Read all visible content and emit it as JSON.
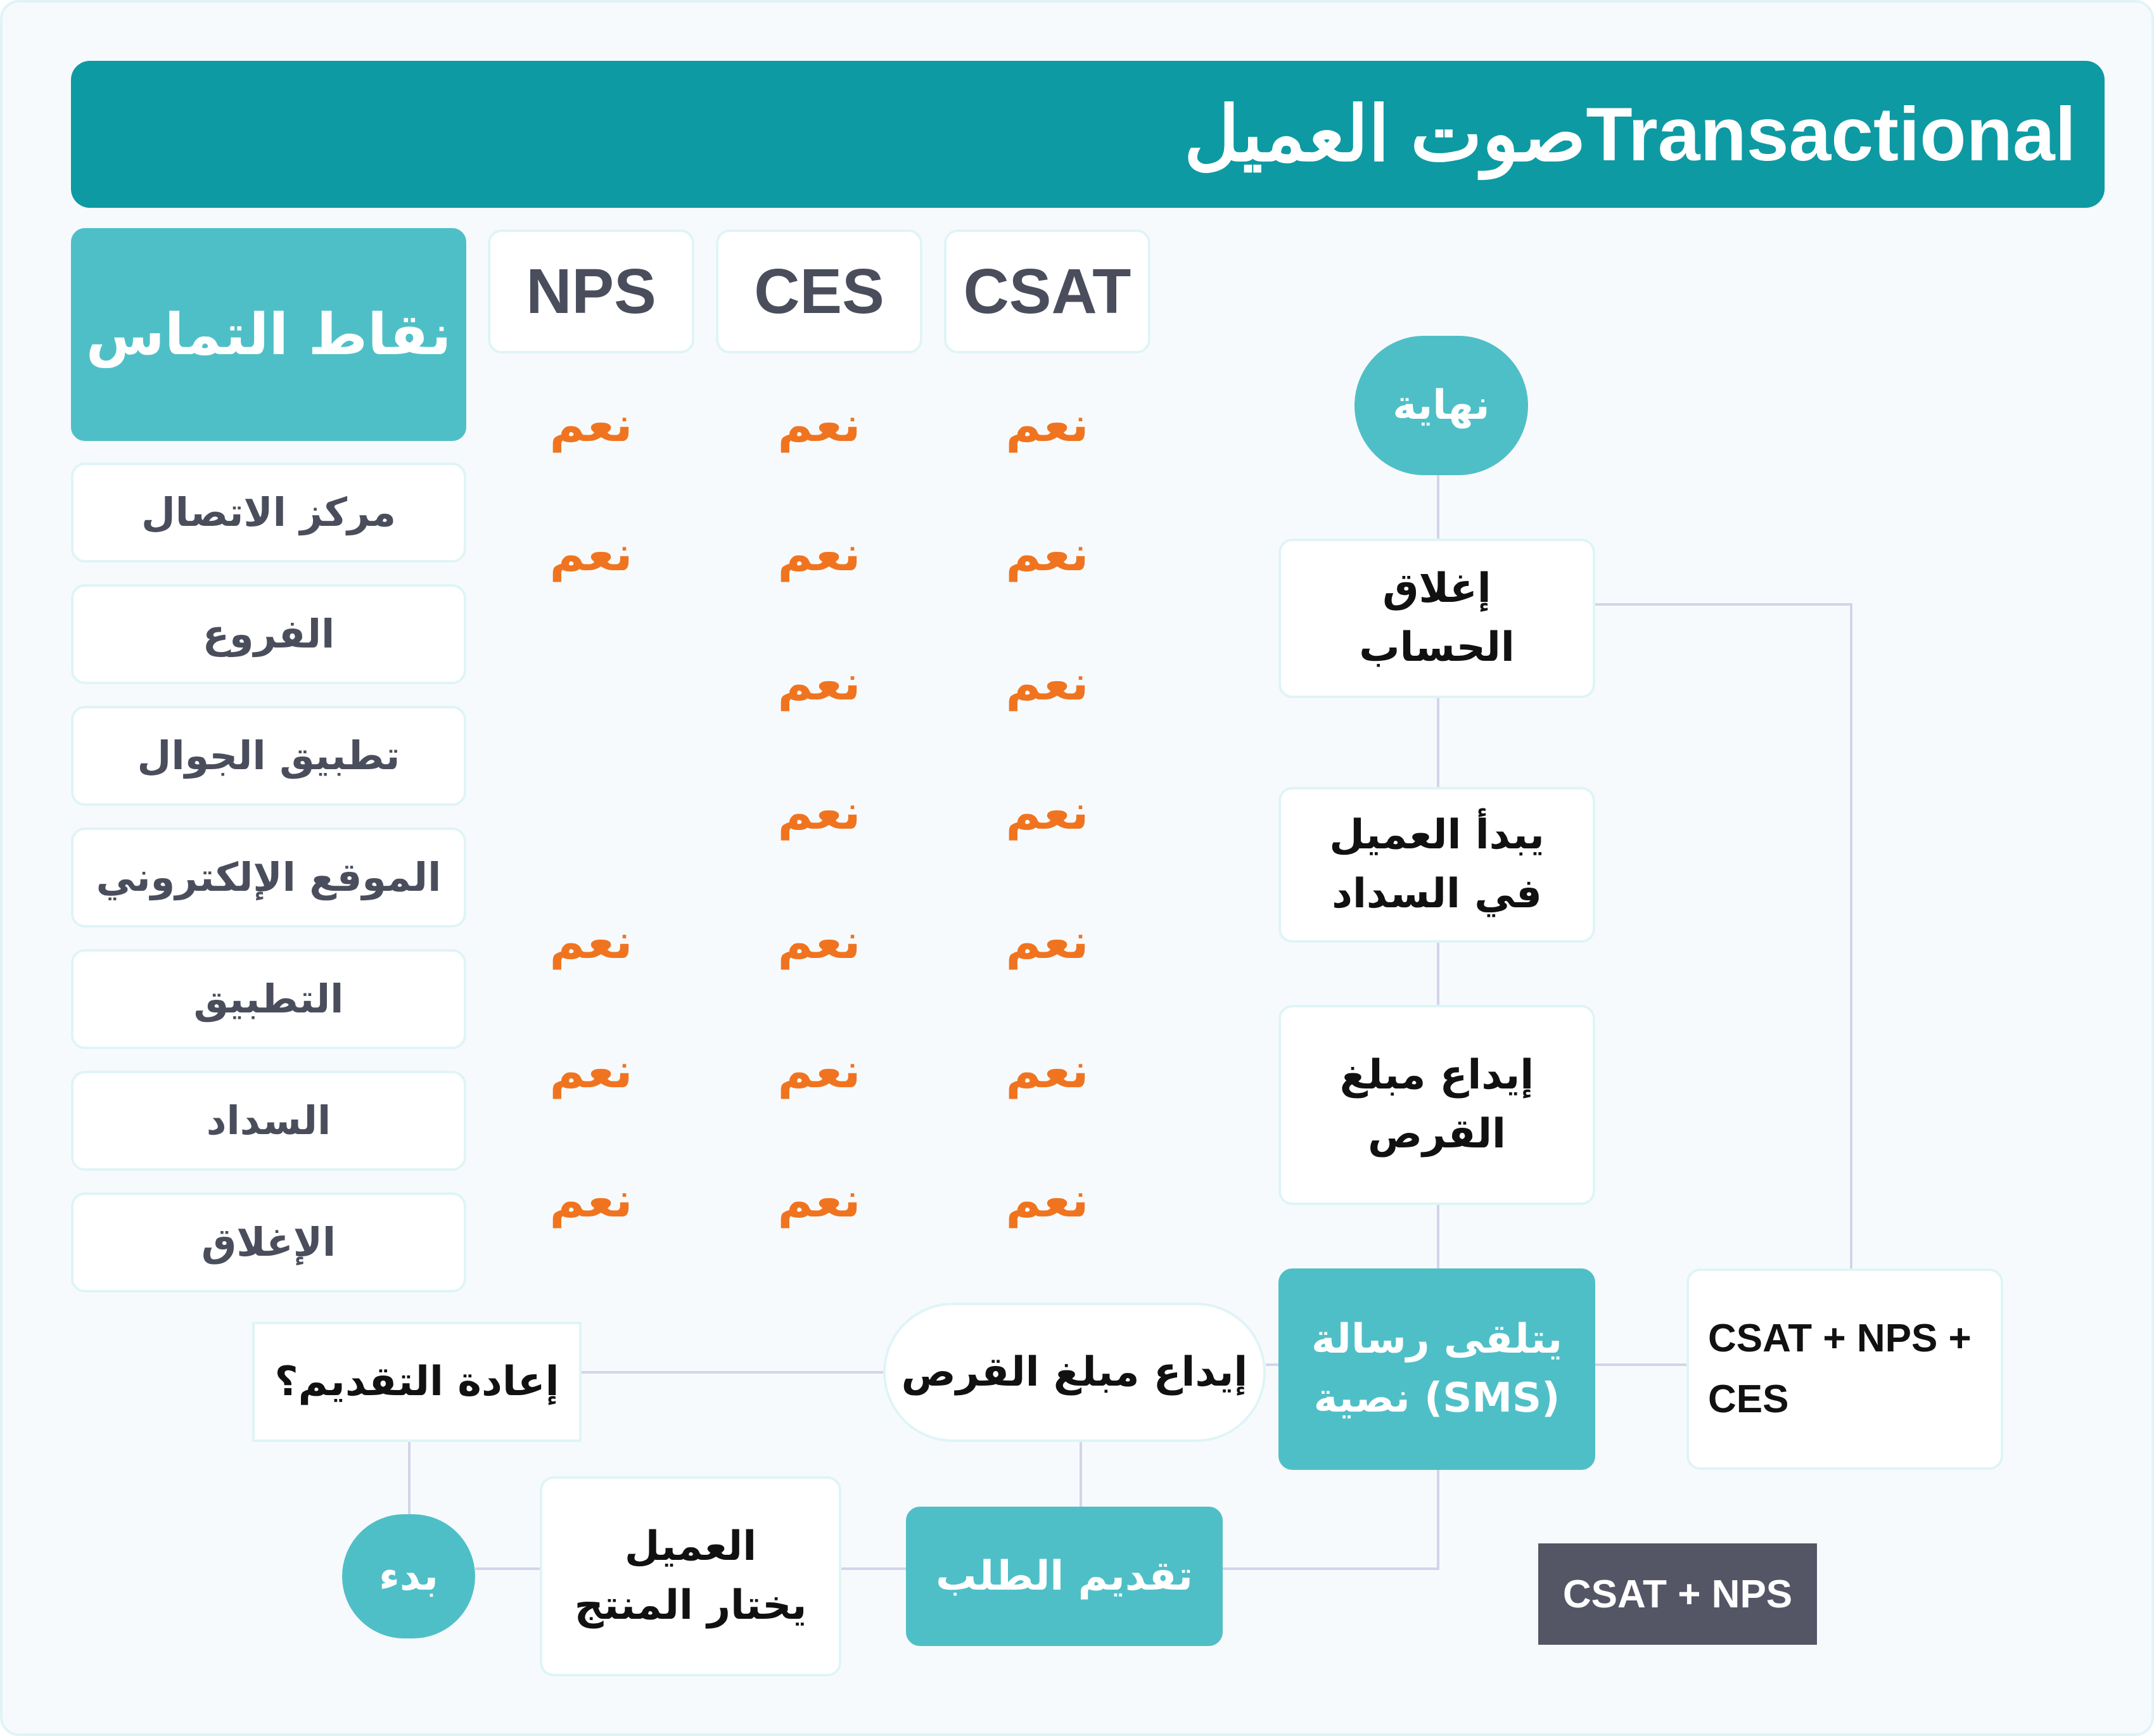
{
  "title": "صوت العميلTransactional",
  "touchpoints": {
    "header": "نقاط التماس",
    "items": [
      "مركز الاتصال",
      "الفروع",
      "تطبيق الجوال",
      "الموقع الإلكتروني",
      "التطبيق",
      "السداد",
      "الإغلاق"
    ]
  },
  "metrics": {
    "columns": [
      "CSAT",
      "CES",
      "NPS"
    ],
    "yes_label": "نعم",
    "matrix": {
      "CSAT": [
        true,
        true,
        true,
        true,
        true,
        true,
        true
      ],
      "CES": [
        true,
        true,
        true,
        true,
        true,
        true,
        true
      ],
      "NPS": [
        true,
        true,
        false,
        false,
        true,
        true,
        true
      ]
    }
  },
  "flow": {
    "end": "نهاية",
    "close_account": "إغلاق الحساب",
    "start_repayment": "يبدأ العميل في السداد",
    "deposit_loan": "إيداع مبلغ القرص",
    "receive_sms": "يتلقى رسالة نصية (SMS)",
    "deposit_loan_pill": "إيداع مبلغ القرص",
    "reapply": "إعادة التقديم؟",
    "start": "بدء",
    "choose_product": "العميل يختار المنتج",
    "submit_request": "تقديم الطلب",
    "metric_combo": "CSAT + NPS + CES"
  },
  "legend": "CSAT + NPS",
  "colors": {
    "banner": "#0d9aa3",
    "teal": "#4fbfc7",
    "yes": "#f0741f",
    "connector": "#d2d5e8",
    "legend_bg": "#545666"
  }
}
